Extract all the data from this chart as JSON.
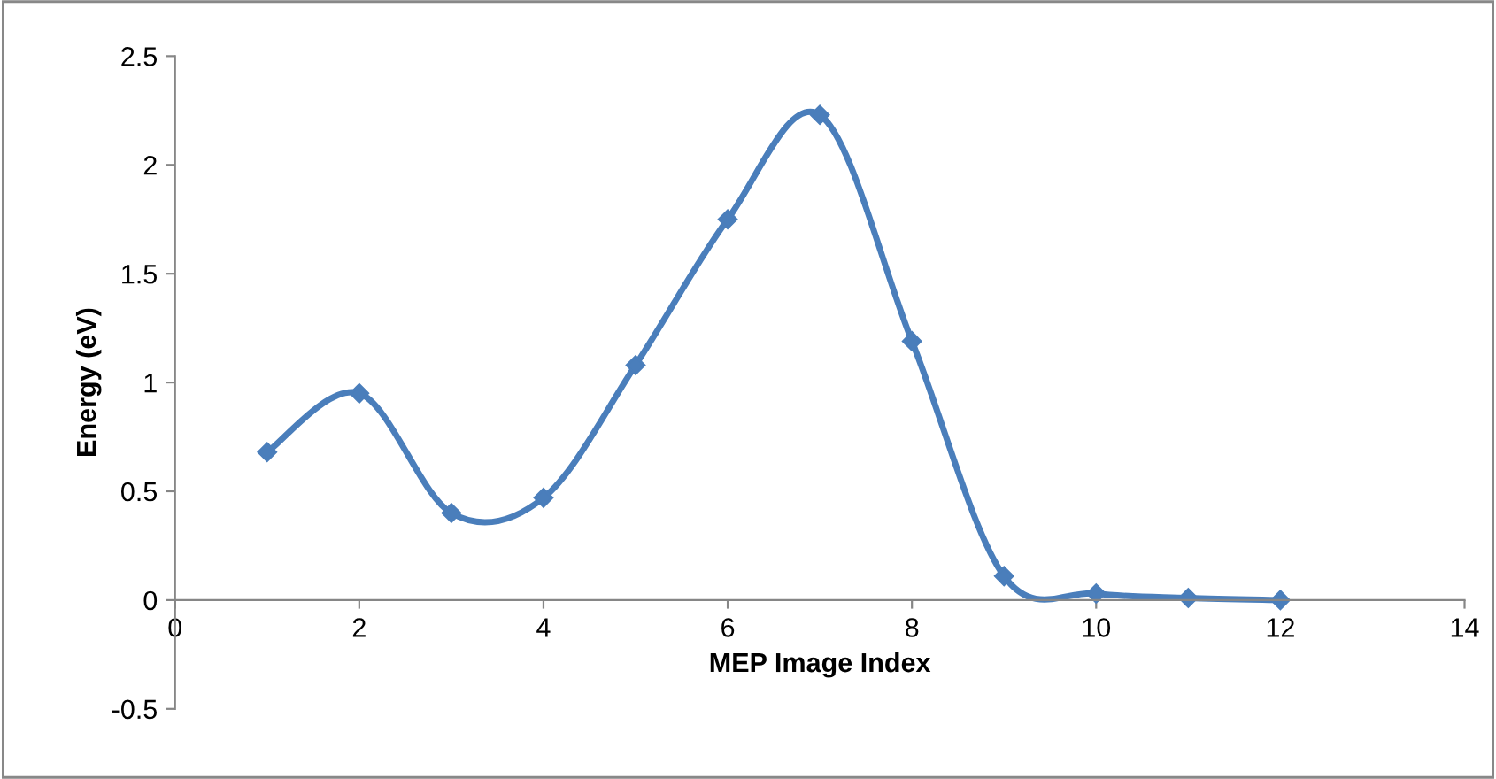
{
  "chart_data": {
    "type": "line",
    "xlabel": "MEP Image Index",
    "ylabel": "Energy (eV)",
    "x": [
      1,
      2,
      3,
      4,
      5,
      6,
      7,
      8,
      9,
      10,
      11,
      12
    ],
    "series": [
      {
        "color": "#4a7ebb",
        "values": [
          0.68,
          0.95,
          0.4,
          0.47,
          1.08,
          1.75,
          2.23,
          1.19,
          0.11,
          0.03,
          0.01,
          0.0
        ]
      }
    ],
    "xlim": [
      0,
      14
    ],
    "xticks": [
      0,
      2,
      4,
      6,
      8,
      10,
      12,
      14
    ],
    "ylim": [
      -0.5,
      2.5
    ],
    "yticks": [
      -0.5,
      0,
      0.5,
      1,
      1.5,
      2,
      2.5
    ],
    "marker": "diamond",
    "line_style": "solid",
    "grid": false,
    "legend": false
  }
}
